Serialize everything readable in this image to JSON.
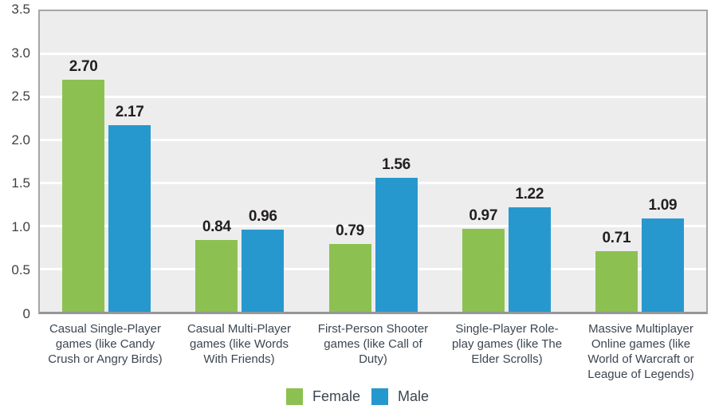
{
  "chart_data": {
    "type": "bar",
    "title": "",
    "xlabel": "",
    "ylabel": "",
    "categories": [
      "Casual Single-Player games (like Candy Crush or Angry Birds)",
      "Casual Multi-Player games (like Words With Friends)",
      "First-Person Shooter games (like Call of Duty)",
      "Single-Player Role-play games (like The Elder Scrolls)",
      "Massive Multiplayer Online games (like World of Warcraft or League of Legends)"
    ],
    "series": [
      {
        "name": "Female",
        "color": "#8CC152",
        "values": [
          2.7,
          0.84,
          0.79,
          0.97,
          0.71
        ],
        "labels": [
          "2.70",
          "0.84",
          "0.79",
          "0.97",
          "0.71"
        ]
      },
      {
        "name": "Male",
        "color": "#2798CE",
        "values": [
          2.17,
          0.96,
          1.56,
          1.22,
          1.09
        ],
        "labels": [
          "2.17",
          "0.96",
          "1.56",
          "1.22",
          "1.09"
        ]
      }
    ],
    "ylim": [
      0,
      3.5
    ],
    "yticks": [
      {
        "label": "0",
        "value": 0
      },
      {
        "label": "0.5",
        "value": 0.5
      },
      {
        "label": "1.0",
        "value": 1.0
      },
      {
        "label": "1.5",
        "value": 1.5
      },
      {
        "label": "2.0",
        "value": 2.0
      },
      {
        "label": "2.5",
        "value": 2.5
      },
      {
        "label": "3.0",
        "value": 3.0
      },
      {
        "label": "3.5",
        "value": 3.5
      }
    ],
    "gridlines": [
      0.5,
      1.0,
      1.5,
      2.0,
      2.5,
      3.0
    ],
    "grid": true,
    "legend_position": "bottom-center",
    "colors": {
      "plot_background": "#EDEDEE",
      "gridline": "#FFFFFF",
      "plot_border": "#A5A5A7",
      "value_label_text": "#231F20",
      "axis_text": "#414145",
      "category_text": "#3C4650"
    }
  }
}
